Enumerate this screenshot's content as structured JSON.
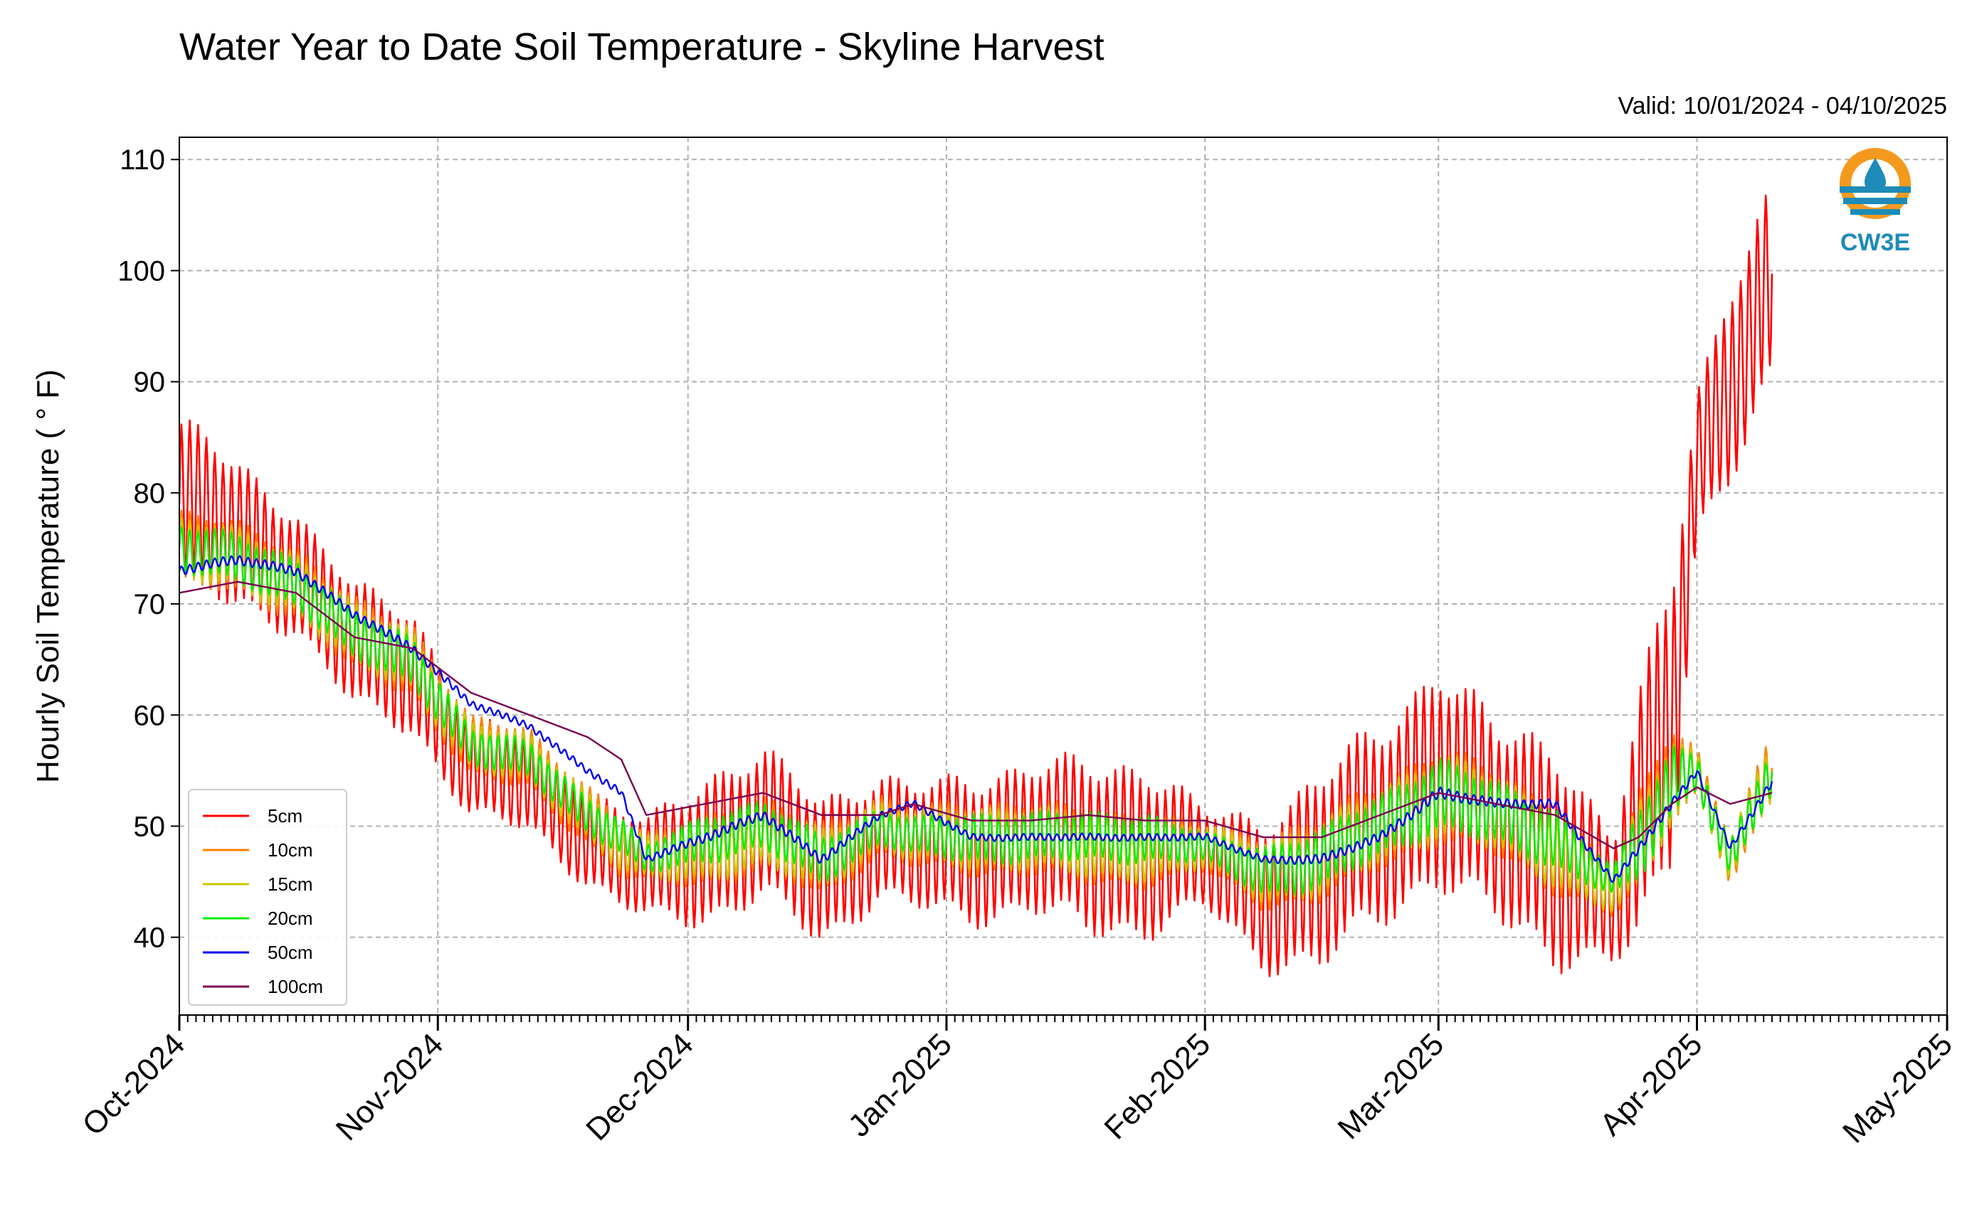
{
  "chart_data": {
    "type": "line",
    "title": "Water Year to Date Soil Temperature - Skyline Harvest",
    "subtitle": "Valid: 10/01/2024 - 04/10/2025",
    "xlabel": "",
    "ylabel": "Hourly Soil Temperature ( ° F)",
    "x_range": [
      "2024-10-01",
      "2025-05-01"
    ],
    "ylim": [
      33,
      112
    ],
    "yticks": [
      40,
      50,
      60,
      70,
      80,
      90,
      100,
      110
    ],
    "x_tick_labels": [
      "Oct-2024",
      "Nov-2024",
      "Dec-2024",
      "Jan-2025",
      "Feb-2025",
      "Mar-2025",
      "Apr-2025",
      "May-2025"
    ],
    "grid": true,
    "legend_position": "lower-left",
    "logo": "CW3E",
    "x": [
      "2024-10-01",
      "2024-10-08",
      "2024-10-15",
      "2024-10-22",
      "2024-10-29",
      "2024-11-05",
      "2024-11-12",
      "2024-11-19",
      "2024-11-23",
      "2024-11-26",
      "2024-12-03",
      "2024-12-10",
      "2024-12-17",
      "2024-12-24",
      "2024-12-28",
      "2025-01-04",
      "2025-01-11",
      "2025-01-18",
      "2025-01-25",
      "2025-02-01",
      "2025-02-08",
      "2025-02-15",
      "2025-02-22",
      "2025-03-01",
      "2025-03-08",
      "2025-03-15",
      "2025-03-22",
      "2025-03-25",
      "2025-03-29",
      "2025-04-01",
      "2025-04-05",
      "2025-04-10"
    ],
    "series": [
      {
        "name": "5cm",
        "color": "#ff0000",
        "values": [
          79,
          76,
          73,
          66,
          64,
          55,
          54,
          49,
          47,
          46,
          48,
          50,
          46,
          49,
          48,
          48,
          49,
          48,
          48,
          47,
          44,
          46,
          50,
          55,
          50,
          48,
          43,
          50,
          60,
          83,
          90,
          98
        ],
        "amplitude": [
          7,
          6,
          5,
          5,
          5,
          4,
          4,
          4,
          4,
          4,
          6,
          6,
          6,
          5,
          5,
          6,
          6,
          7,
          7,
          4,
          6,
          8,
          8,
          9,
          8,
          9,
          5,
          10,
          12,
          6,
          8,
          8
        ]
      },
      {
        "name": "10cm",
        "color": "#ff8000",
        "values": [
          75,
          74,
          72,
          67,
          65,
          57,
          56,
          51,
          48,
          47,
          48,
          49,
          47,
          50,
          49,
          49,
          49,
          48,
          48,
          48,
          46,
          47,
          50,
          53,
          51,
          48,
          44,
          48,
          55,
          55,
          47,
          55
        ],
        "amplitude": [
          3,
          3,
          3,
          3,
          3,
          2.5,
          2.5,
          2.5,
          2.5,
          2,
          3,
          3,
          3,
          2.5,
          2.5,
          3,
          3,
          3,
          3,
          2,
          3,
          3.5,
          3.5,
          4,
          3.5,
          3.5,
          2,
          4,
          4,
          2,
          2,
          3
        ]
      },
      {
        "name": "15cm",
        "color": "#c8c800",
        "values": [
          75,
          74,
          72,
          67,
          65,
          57,
          56,
          51,
          48,
          47,
          48,
          49,
          47,
          50,
          49,
          49,
          49,
          48,
          48,
          48,
          46,
          47,
          50,
          53,
          51,
          48,
          44,
          48,
          54,
          55,
          47,
          55
        ],
        "amplitude": [
          2.5,
          2.5,
          2.5,
          2.5,
          2.5,
          2,
          2,
          2,
          2,
          1.8,
          2.5,
          2.5,
          2.5,
          2,
          2,
          2.5,
          2.5,
          2.5,
          2.5,
          1.8,
          2.5,
          3,
          3,
          3.5,
          3,
          3,
          1.8,
          3.5,
          3.5,
          1.8,
          1.8,
          2.5
        ]
      },
      {
        "name": "20cm",
        "color": "#00ee00",
        "values": [
          75,
          74,
          72,
          67,
          65,
          57,
          56,
          51,
          49,
          47,
          49,
          50,
          47,
          50,
          49,
          49,
          49,
          49,
          49,
          48,
          46,
          47,
          50,
          53,
          51,
          49,
          45,
          48,
          54,
          55,
          47,
          55
        ],
        "amplitude": [
          2,
          2,
          2,
          2,
          2,
          1.5,
          1.5,
          1.5,
          1.5,
          1.2,
          2,
          2,
          2,
          1.5,
          1.5,
          2,
          2,
          2,
          2,
          1.2,
          2,
          2.5,
          2.5,
          3,
          2.5,
          2.5,
          1.2,
          3,
          3,
          1.5,
          1.5,
          2
        ]
      },
      {
        "name": "50cm",
        "color": "#0000ee",
        "values": [
          73,
          74,
          73,
          69,
          66,
          61,
          59,
          55,
          53,
          47,
          49,
          51,
          47,
          51,
          52,
          49,
          49,
          49,
          49,
          49,
          47,
          47,
          49,
          53,
          52,
          52,
          45,
          48,
          52,
          55,
          48,
          54
        ],
        "amplitude": [
          0.4,
          0.4,
          0.4,
          0.4,
          0.4,
          0.3,
          0.3,
          0.3,
          0.3,
          0.3,
          0.4,
          0.4,
          0.4,
          0.3,
          0.3,
          0.3,
          0.3,
          0.3,
          0.3,
          0.3,
          0.3,
          0.4,
          0.4,
          0.5,
          0.4,
          0.4,
          0.3,
          0.4,
          0.4,
          0.3,
          0.3,
          0.4
        ]
      },
      {
        "name": "100cm",
        "color": "#7a0050",
        "values": [
          71,
          72,
          71,
          67,
          66,
          62,
          60,
          58,
          56,
          51,
          52,
          53,
          51,
          51,
          52,
          50.5,
          50.5,
          51,
          50.5,
          50.5,
          49,
          49,
          51,
          53,
          52,
          51,
          48,
          49,
          52,
          53.5,
          52,
          53
        ],
        "amplitude": [
          0,
          0,
          0,
          0,
          0,
          0,
          0,
          0,
          0,
          0,
          0,
          0,
          0,
          0,
          0,
          0,
          0,
          0,
          0,
          0,
          0,
          0,
          0,
          0,
          0,
          0,
          0,
          0,
          0,
          0,
          0,
          0
        ]
      }
    ]
  }
}
